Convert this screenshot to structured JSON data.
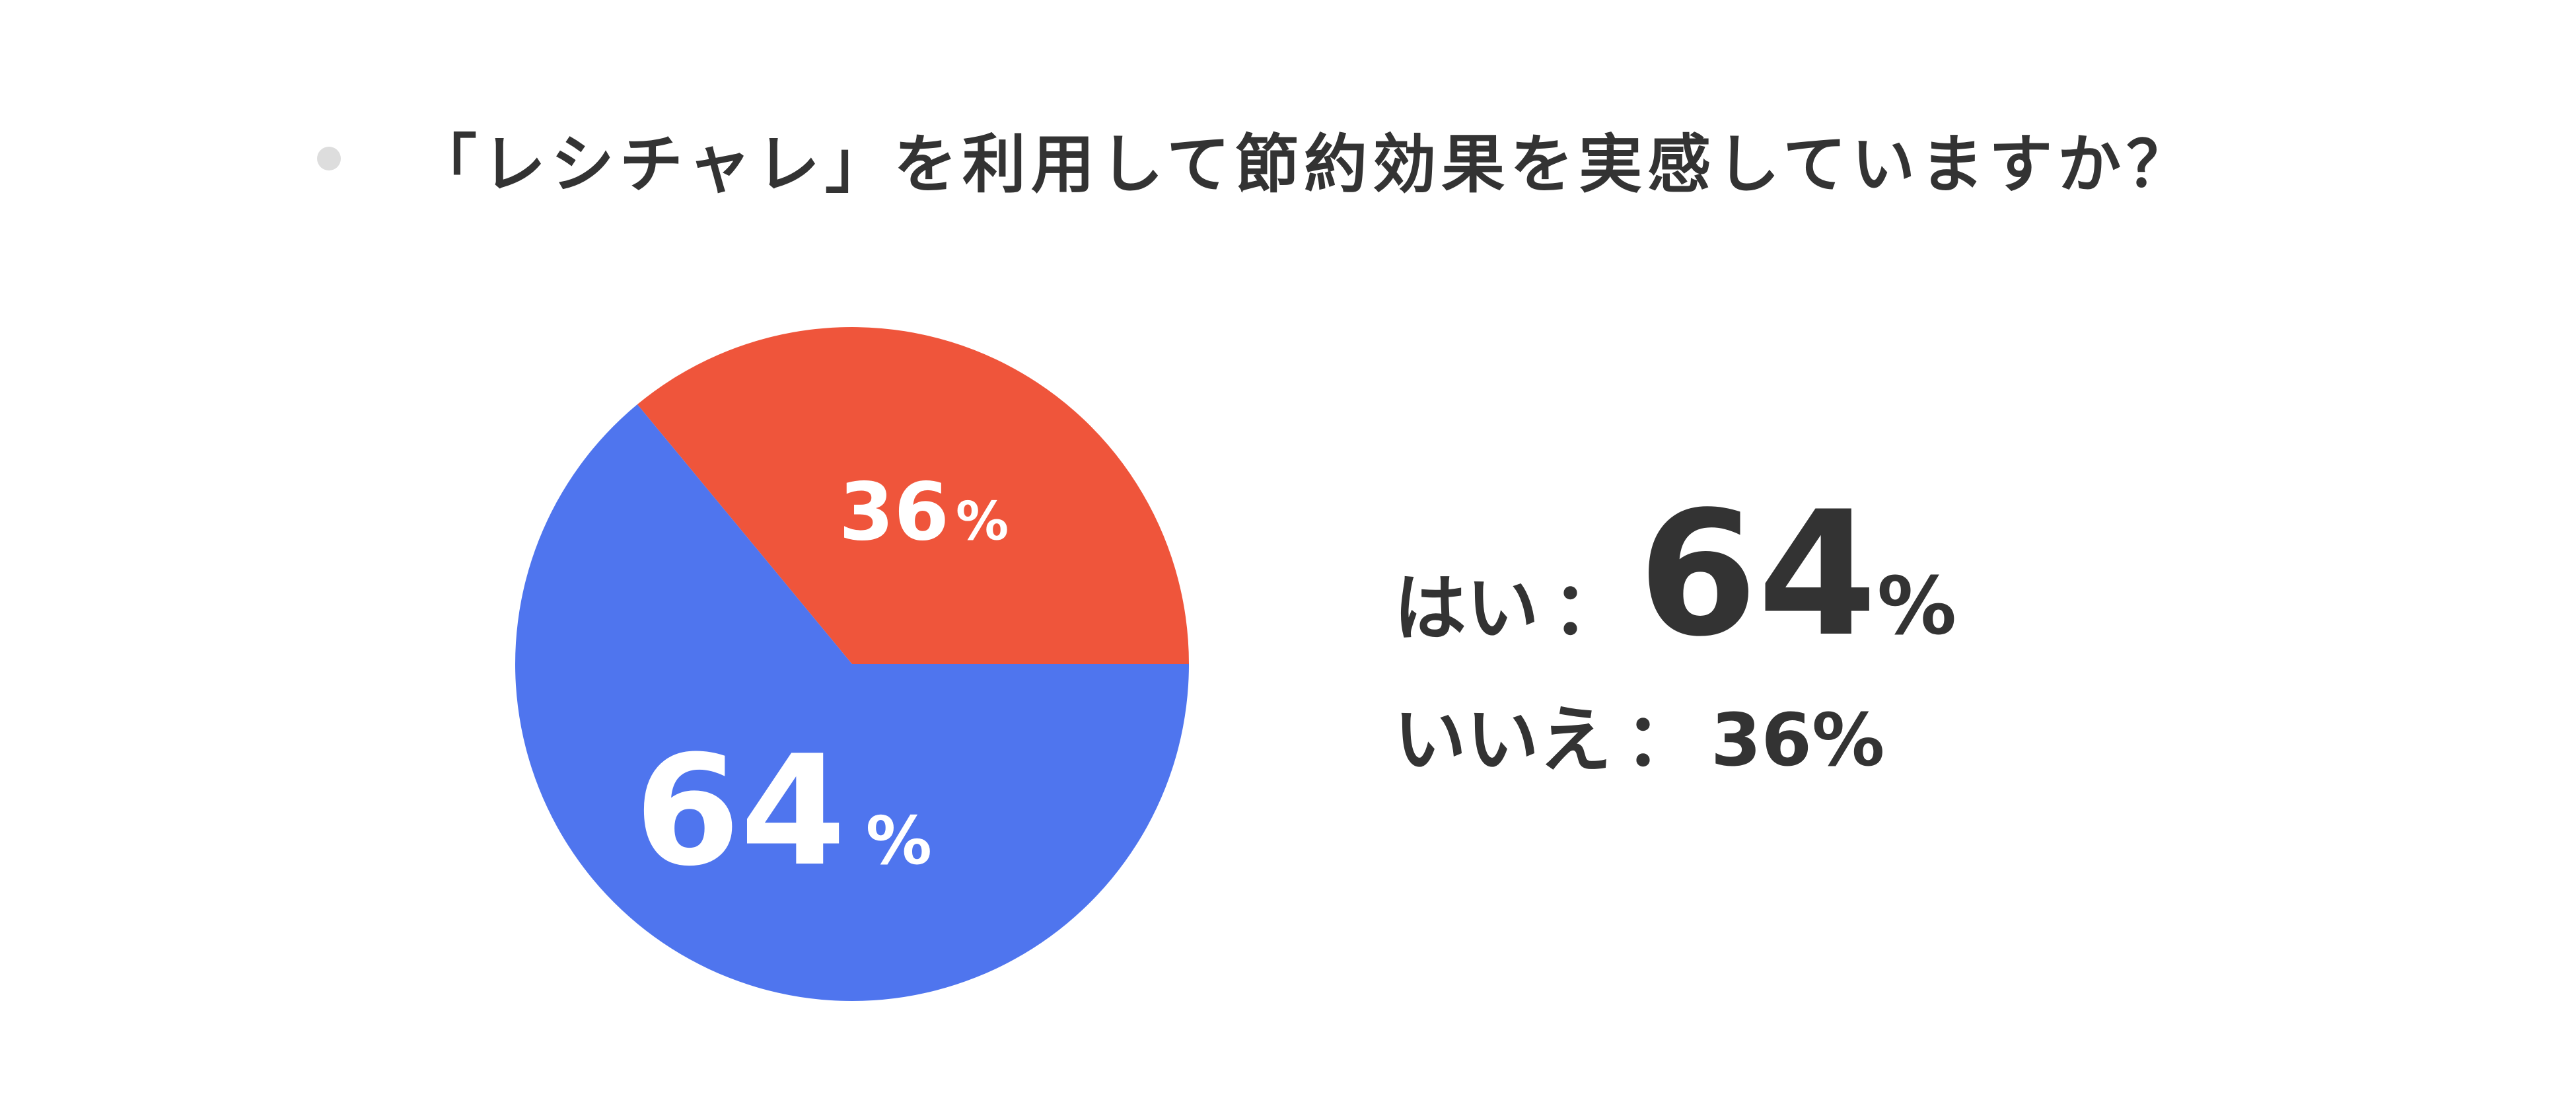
{
  "title": {
    "text": "「レシチャレ」を利用して節約効果を実感していますか？",
    "bullet_color": "#dddddd"
  },
  "chart_data": {
    "type": "pie",
    "title": "「レシチャレ」を利用して節約効果を実感していますか？",
    "slices": [
      {
        "label": "はい",
        "value": 64,
        "color": "#4f75ee",
        "display_value": "64",
        "display_unit": "%"
      },
      {
        "label": "いいえ",
        "value": 36,
        "color": "#ef553b",
        "display_value": "36",
        "display_unit": "%"
      }
    ],
    "unit": "%"
  },
  "legend": {
    "yes": {
      "label": "はい",
      "separator": "：",
      "value": "64",
      "unit": "%"
    },
    "no": {
      "label": "いいえ",
      "separator": "：",
      "value": "36",
      "unit": "%"
    }
  }
}
